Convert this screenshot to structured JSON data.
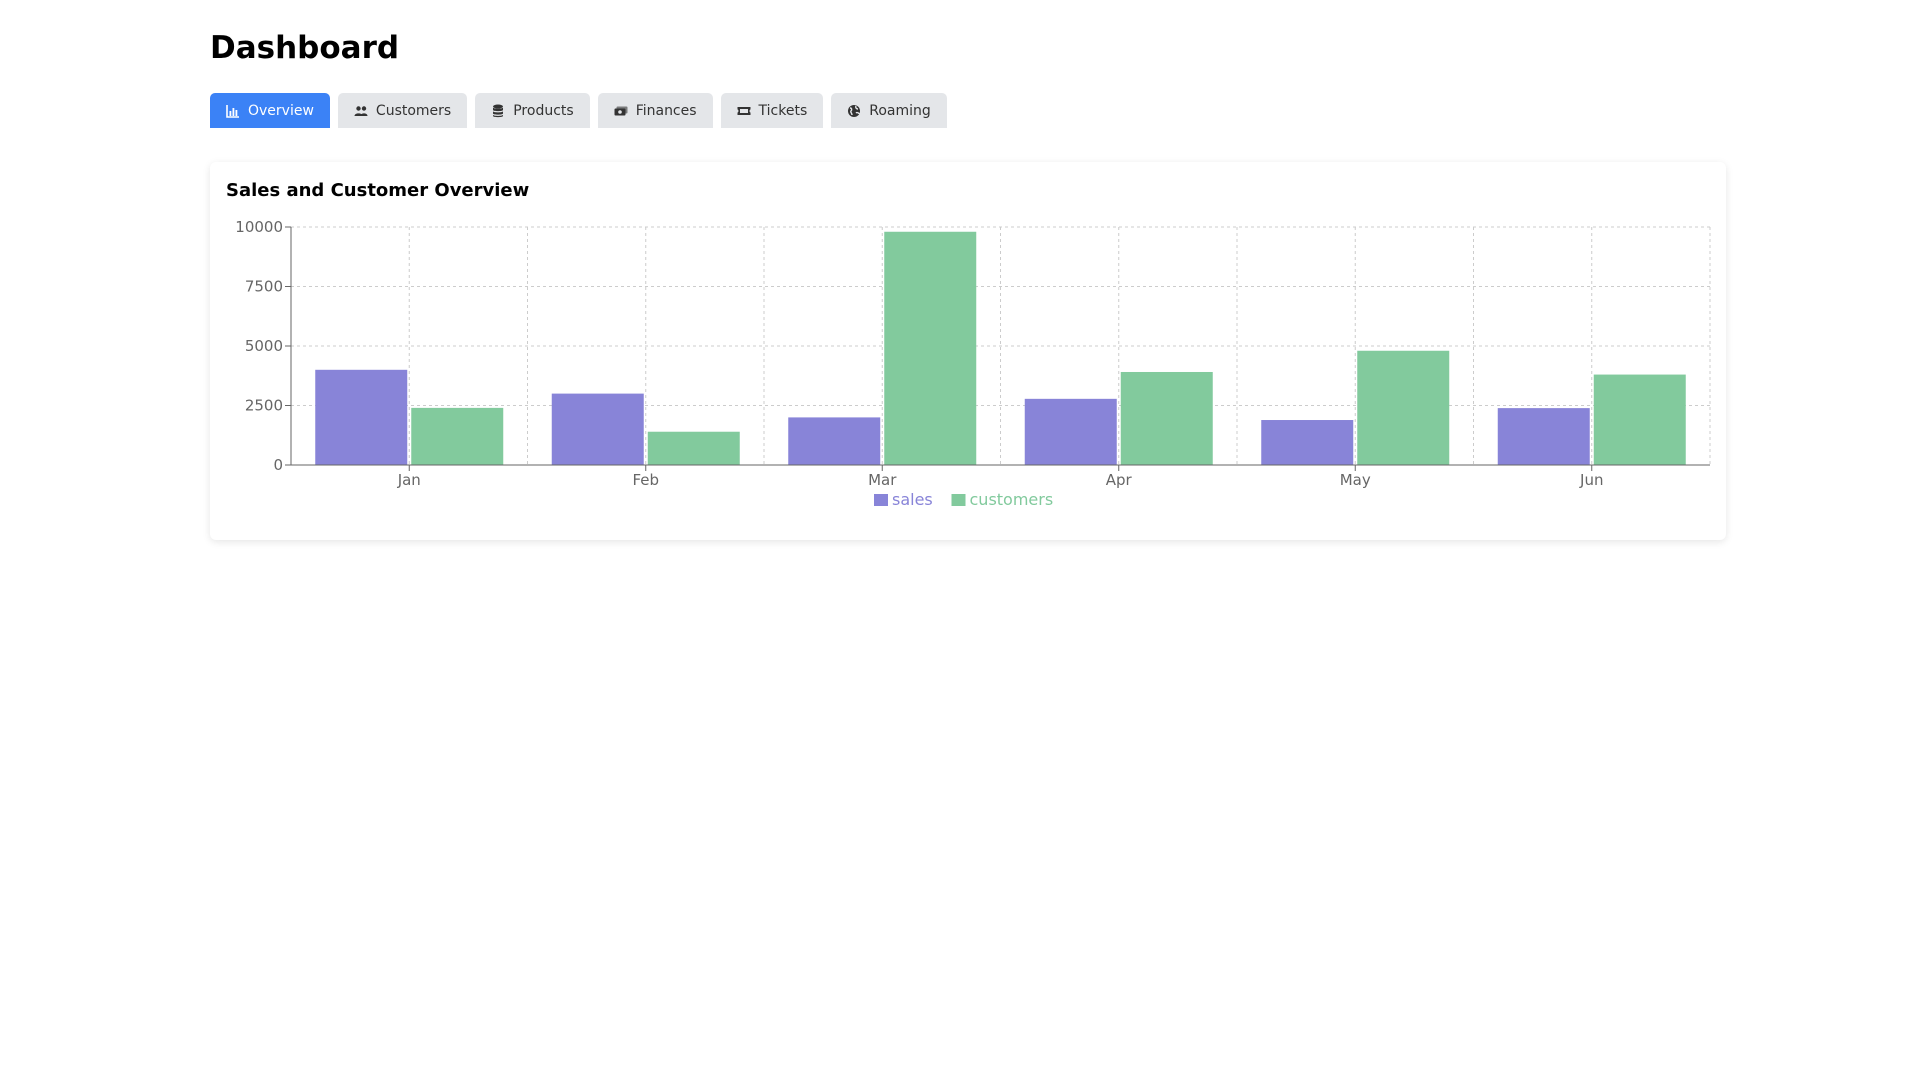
{
  "page": {
    "title": "Dashboard"
  },
  "tabs": [
    {
      "label": "Overview",
      "icon": "bar-chart-icon",
      "active": true
    },
    {
      "label": "Customers",
      "icon": "users-icon",
      "active": false
    },
    {
      "label": "Products",
      "icon": "database-icon",
      "active": false
    },
    {
      "label": "Finances",
      "icon": "money-icon",
      "active": false
    },
    {
      "label": "Tickets",
      "icon": "ticket-icon",
      "active": false
    },
    {
      "label": "Roaming",
      "icon": "globe-icon",
      "active": false
    }
  ],
  "colors": {
    "accent": "#3b82f6",
    "sales": "#8884d8",
    "customers": "#82ca9d"
  },
  "card": {
    "title": "Sales and Customer Overview"
  },
  "chart_data": {
    "type": "bar",
    "categories": [
      "Jan",
      "Feb",
      "Mar",
      "Apr",
      "May",
      "Jun"
    ],
    "series": [
      {
        "name": "sales",
        "values": [
          4000,
          3000,
          2000,
          2780,
          1890,
          2390
        ],
        "color": "#8884d8"
      },
      {
        "name": "customers",
        "values": [
          2400,
          1398,
          9800,
          3908,
          4800,
          3800
        ],
        "color": "#82ca9d"
      }
    ],
    "yticks": [
      0,
      2500,
      5000,
      7500,
      10000
    ],
    "ylim": [
      0,
      10000
    ],
    "grid": true,
    "legend": "bottom-center"
  }
}
